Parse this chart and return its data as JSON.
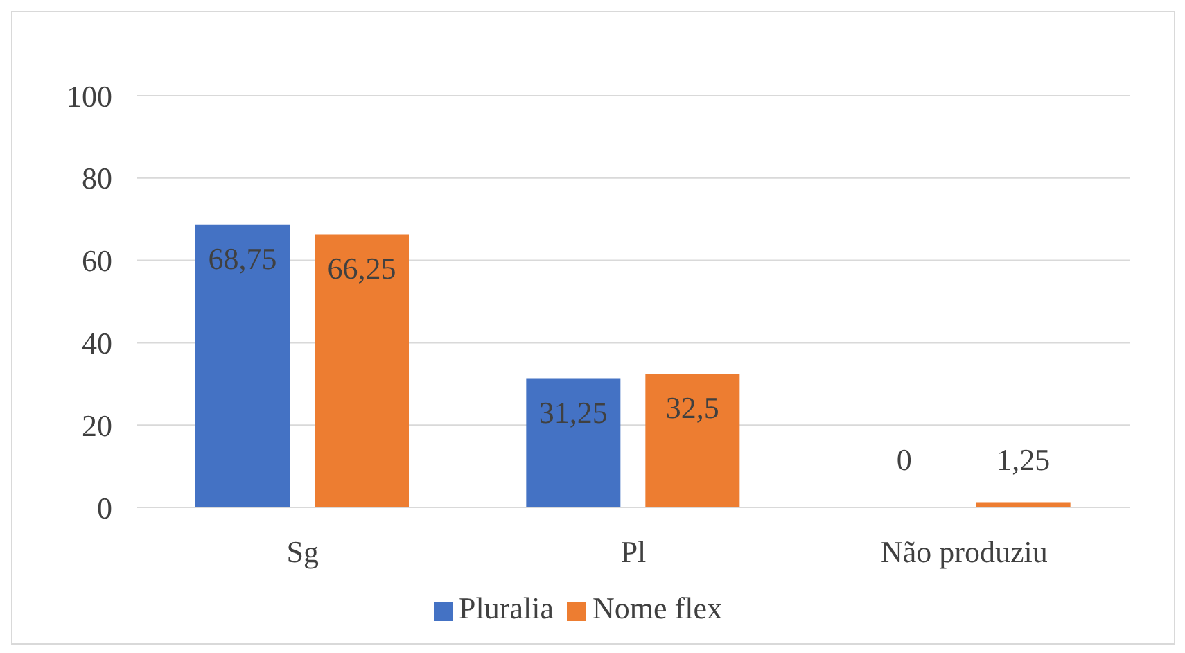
{
  "chart_data": {
    "type": "bar",
    "categories": [
      "Sg",
      "Pl",
      "Não produziu"
    ],
    "series": [
      {
        "name": "Pluralia",
        "color": "#4472c4",
        "values": [
          68.75,
          31.25,
          0
        ],
        "value_labels": [
          "68,75",
          "31,25",
          "0"
        ]
      },
      {
        "name": "Nome flex",
        "color": "#ed7d31",
        "values": [
          66.25,
          32.5,
          1.25
        ],
        "value_labels": [
          "66,25",
          "32,5",
          "1,25"
        ]
      }
    ],
    "ylim": [
      0,
      100
    ],
    "yticks": [
      0,
      20,
      40,
      60,
      80,
      100
    ],
    "grid": "y",
    "legend": "bottom"
  }
}
